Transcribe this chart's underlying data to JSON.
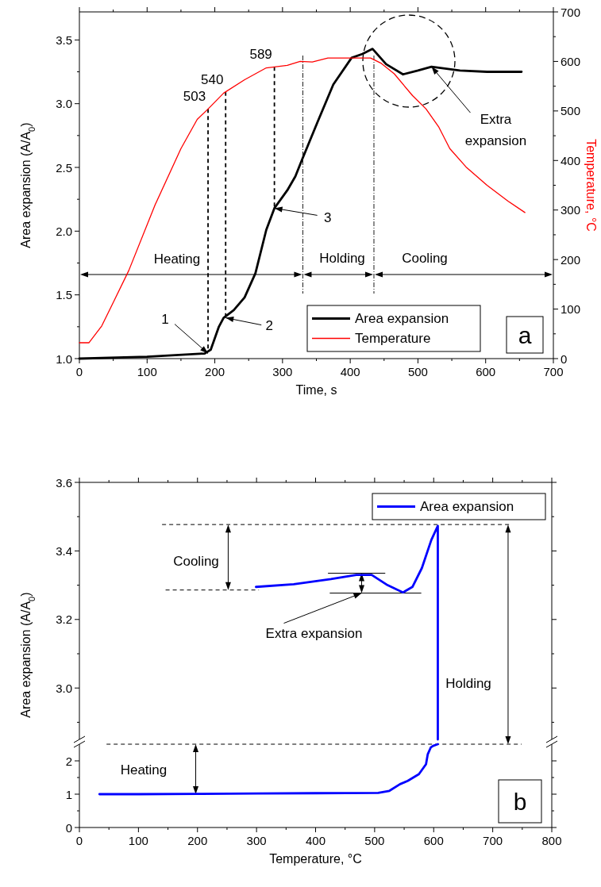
{
  "chart_data": [
    {
      "type": "line",
      "xlabel": "Time, s",
      "ylabel": "Area expansion (A/A$_{0}$)",
      "y2label": "Temperature, °C",
      "xlim": [
        0,
        700
      ],
      "xticks": [
        0,
        {
          "value": 50,
          "label": null
        },
        100,
        {
          "value": 150,
          "label": null
        },
        200,
        {
          "value": 250,
          "label": null
        },
        300,
        {
          "value": 350,
          "label": null
        },
        400,
        {
          "value": 450,
          "label": null
        },
        500,
        {
          "value": 550,
          "label": null
        },
        600,
        {
          "value": 650,
          "label": null
        },
        700
      ],
      "ylim": [
        1,
        3.72
      ],
      "yticks": [
        {
          "value": 1,
          "label": "1.0"
        },
        {
          "value": 1.25,
          "label": null
        },
        1.5,
        {
          "value": 1.75,
          "label": null
        },
        {
          "value": 2,
          "label": "2.0"
        },
        {
          "value": 2.25,
          "label": null
        },
        2.5,
        {
          "value": 2.75,
          "label": null
        },
        {
          "value": 3,
          "label": "3.0"
        },
        {
          "value": 3.25,
          "label": null
        },
        3.5
      ],
      "y2lim": [
        0,
        700
      ],
      "y2ticks": [
        0,
        {
          "value": 50,
          "label": null
        },
        100,
        {
          "value": 150,
          "label": null
        },
        200,
        {
          "value": 250,
          "label": null
        },
        300,
        {
          "value": 350,
          "label": null
        },
        400,
        {
          "value": 450,
          "label": null
        },
        500,
        {
          "value": 550,
          "label": null
        },
        600,
        {
          "value": 650,
          "label": null
        },
        700
      ],
      "legend": "bottom right",
      "series": [
        {
          "name": "Area expansion",
          "color": "#000000",
          "x": [
            0,
            100,
            185,
            194,
            206,
            213,
            228,
            244,
            260,
            276,
            288,
            307,
            319,
            328,
            352,
            375,
            402,
            418,
            433,
            453,
            478,
            500,
            520,
            562,
            602,
            653
          ],
          "values": [
            1.0,
            1.015,
            1.04,
            1.07,
            1.25,
            1.32,
            1.38,
            1.48,
            1.67,
            2.01,
            2.18,
            2.32,
            2.43,
            2.55,
            2.86,
            3.15,
            3.36,
            3.39,
            3.43,
            3.31,
            3.23,
            3.26,
            3.29,
            3.26,
            3.25,
            3.25
          ]
        },
        {
          "name": "Temperature",
          "color": "#ff0000",
          "axis": "y2",
          "x": [
            0,
            14,
            33,
            52,
            73,
            112,
            150,
            174,
            190,
            213,
            244,
            276,
            307,
            326,
            344,
            367,
            430,
            446,
            465,
            492,
            512,
            531,
            547,
            571,
            602,
            633,
            658
          ],
          "values": [
            32,
            32,
            66,
            119,
            178,
            311,
            424,
            483,
            504,
            536,
            563,
            587,
            592,
            600,
            599,
            607,
            607,
            596,
            575,
            531,
            504,
            467,
            424,
            387,
            350,
            318,
            295
          ]
        }
      ],
      "ref_lines": [
        {
          "axis": "x",
          "value": 190,
          "line_style": "dashed"
        },
        {
          "axis": "x",
          "value": 216,
          "line_style": "dashed"
        },
        {
          "axis": "x",
          "value": 288,
          "line_style": "dashed"
        },
        {
          "axis": "x",
          "value": 330,
          "line_style": "dotted"
        },
        {
          "axis": "x",
          "value": 435,
          "line_style": "dotted"
        }
      ],
      "annotations": [
        {
          "text": "1",
          "x": 190,
          "y": 1.04
        },
        {
          "text": "2",
          "x": 216,
          "y": 1.32
        },
        {
          "text": "3",
          "x": 288,
          "y": 2.18
        },
        {
          "text": "Extra expansion",
          "x": 520,
          "y": 3.29
        },
        "Heating",
        "Holding",
        "Cooling",
        "a",
        "503",
        "540",
        "589"
      ]
    },
    {
      "type": "line",
      "ylabel": "Area expansion (A/A$_{0}$)",
      "xlim": [
        0,
        800
      ],
      "xticks": [
        0,
        {
          "value": 50,
          "label": null
        },
        100,
        {
          "value": 150,
          "label": null
        },
        200,
        {
          "value": 250,
          "label": null
        },
        300,
        {
          "value": 350,
          "label": null
        },
        400,
        {
          "value": 450,
          "label": null
        },
        500,
        {
          "value": 550,
          "label": null
        },
        600,
        {
          "value": 650,
          "label": null
        },
        700,
        {
          "value": 750,
          "label": null
        },
        800
      ],
      "ylim": [
        2.85,
        3.6
      ],
      "yticks": [
        {
          "value": 2.9,
          "label": null
        },
        {
          "value": 3,
          "label": "3.0"
        },
        {
          "value": 3.1,
          "label": null
        },
        3.2,
        {
          "value": 3.3,
          "label": null
        },
        3.4,
        {
          "value": 3.5,
          "label": null
        },
        3.6
      ],
      "tick_labels": "y",
      "legend": "top right",
      "series": [
        {
          "name": "Area expansion",
          "color": "#0000ff",
          "x": [
            607,
            607,
            596,
            580,
            564,
            548,
            522,
            495,
            469,
            426,
            363,
            299
          ],
          "values": [
            2.85,
            3.473,
            3.432,
            3.35,
            3.295,
            3.279,
            3.3,
            3.33,
            3.33,
            3.318,
            3.303,
            3.295
          ]
        }
      ],
      "ref_lines": [
        {
          "axis": "y",
          "value": 3.477,
          "line_style": "dashed"
        },
        {
          "axis": "y",
          "value": 3.286,
          "line_style": "dashed"
        },
        {
          "axis": "y",
          "value": 3.335,
          "line_style": "solid"
        },
        {
          "axis": "y",
          "value": 3.277,
          "line_style": "solid"
        }
      ],
      "annotations": [
        "Cooling",
        {
          "text": "Extra expansion",
          "x": 478,
          "y": 3.277
        },
        "Holding"
      ]
    },
    {
      "type": "line",
      "xlabel": "Temperature, °C",
      "xlim": [
        0,
        800
      ],
      "xticks": [
        0,
        {
          "value": 50,
          "label": null
        },
        100,
        {
          "value": 150,
          "label": null
        },
        200,
        {
          "value": 250,
          "label": null
        },
        300,
        {
          "value": 350,
          "label": null
        },
        400,
        {
          "value": 450,
          "label": null
        },
        500,
        {
          "value": 550,
          "label": null
        },
        600,
        {
          "value": 650,
          "label": null
        },
        700,
        {
          "value": 750,
          "label": null
        },
        800
      ],
      "ylim": [
        0,
        2.5
      ],
      "yticks": [
        0,
        {
          "value": 0.5,
          "label": null
        },
        1,
        {
          "value": 1.5,
          "label": null
        },
        2
      ],
      "series": [
        {
          "color": "#0000ff",
          "x": [
            34,
            100,
            200,
            300,
            400,
            506,
            525,
            543,
            556,
            575,
            587,
            590,
            595,
            599,
            607
          ],
          "values": [
            1.0,
            1.0,
            1.01,
            1.02,
            1.03,
            1.04,
            1.1,
            1.3,
            1.4,
            1.6,
            1.9,
            2.2,
            2.4,
            2.45,
            2.5
          ]
        }
      ],
      "ref_lines": [
        {
          "axis": "y",
          "value": 2.5,
          "line_style": "dashed"
        }
      ],
      "annotations": [
        "Heating",
        "b"
      ]
    }
  ]
}
